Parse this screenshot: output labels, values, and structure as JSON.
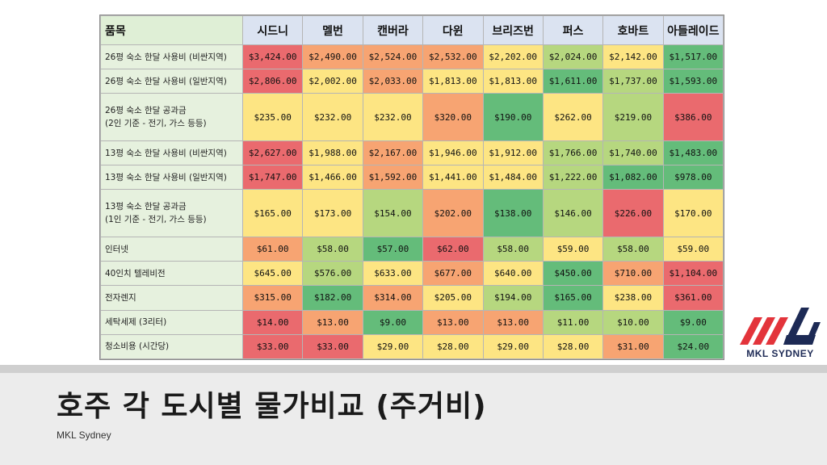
{
  "slide": {
    "title": "호주 각 도시별 물가비교 (주거비)",
    "subtitle": "MKL Sydney",
    "logo_text": "MKL SYDNEY"
  },
  "colors": {
    "red": "#ea6a6e",
    "orange": "#f7a472",
    "yellow": "#fde583",
    "lightgreen": "#b6d77f",
    "green": "#64bc7a"
  },
  "chart_data": {
    "type": "table",
    "header_item": "품목",
    "columns": [
      "시드니",
      "멜번",
      "캔버라",
      "다윈",
      "브리즈번",
      "퍼스",
      "호바트",
      "아들레이드"
    ],
    "rows": [
      {
        "label": [
          "26평 숙소 한달 사용비 (비싼지역)"
        ],
        "cells": [
          {
            "text": "$3,424.00",
            "level": "red"
          },
          {
            "text": "$2,490.00",
            "level": "orange"
          },
          {
            "text": "$2,524.00",
            "level": "orange"
          },
          {
            "text": "$2,532.00",
            "level": "orange"
          },
          {
            "text": "$2,202.00",
            "level": "yellow"
          },
          {
            "text": "$2,024.00",
            "level": "lightgreen"
          },
          {
            "text": "$2,142.00",
            "level": "yellow"
          },
          {
            "text": "$1,517.00",
            "level": "green"
          }
        ]
      },
      {
        "label": [
          "26평 숙소 한달 사용비 (일반지역)"
        ],
        "cells": [
          {
            "text": "$2,806.00",
            "level": "red"
          },
          {
            "text": "$2,002.00",
            "level": "yellow"
          },
          {
            "text": "$2,033.00",
            "level": "orange"
          },
          {
            "text": "$1,813.00",
            "level": "yellow"
          },
          {
            "text": "$1,813.00",
            "level": "yellow"
          },
          {
            "text": "$1,611.00",
            "level": "green"
          },
          {
            "text": "$1,737.00",
            "level": "lightgreen"
          },
          {
            "text": "$1,593.00",
            "level": "green"
          }
        ]
      },
      {
        "label": [
          "26평 숙소 한달 공과금",
          "(2인 기준 - 전기, 가스 등등)"
        ],
        "cells": [
          {
            "text": "$235.00",
            "level": "yellow"
          },
          {
            "text": "$232.00",
            "level": "yellow"
          },
          {
            "text": "$232.00",
            "level": "yellow"
          },
          {
            "text": "$320.00",
            "level": "orange"
          },
          {
            "text": "$190.00",
            "level": "green"
          },
          {
            "text": "$262.00",
            "level": "yellow"
          },
          {
            "text": "$219.00",
            "level": "lightgreen"
          },
          {
            "text": "$386.00",
            "level": "red"
          }
        ]
      },
      {
        "label": [
          "13평 숙소 한달 사용비 (비싼지역)"
        ],
        "cells": [
          {
            "text": "$2,627.00",
            "level": "red"
          },
          {
            "text": "$1,988.00",
            "level": "yellow"
          },
          {
            "text": "$2,167.00",
            "level": "orange"
          },
          {
            "text": "$1,946.00",
            "level": "yellow"
          },
          {
            "text": "$1,912.00",
            "level": "yellow"
          },
          {
            "text": "$1,766.00",
            "level": "lightgreen"
          },
          {
            "text": "$1,740.00",
            "level": "lightgreen"
          },
          {
            "text": "$1,483.00",
            "level": "green"
          }
        ]
      },
      {
        "label": [
          "13평 숙소 한달 사용비 (일반지역)"
        ],
        "cells": [
          {
            "text": "$1,747.00",
            "level": "red"
          },
          {
            "text": "$1,466.00",
            "level": "yellow"
          },
          {
            "text": "$1,592.00",
            "level": "orange"
          },
          {
            "text": "$1,441.00",
            "level": "yellow"
          },
          {
            "text": "$1,484.00",
            "level": "yellow"
          },
          {
            "text": "$1,222.00",
            "level": "lightgreen"
          },
          {
            "text": "$1,082.00",
            "level": "green"
          },
          {
            "text": "$978.00",
            "level": "green"
          }
        ]
      },
      {
        "label": [
          "13평 숙소 한달 공과금",
          "(1인 기준 - 전기, 가스 등등)"
        ],
        "cells": [
          {
            "text": "$165.00",
            "level": "yellow"
          },
          {
            "text": "$173.00",
            "level": "yellow"
          },
          {
            "text": "$154.00",
            "level": "lightgreen"
          },
          {
            "text": "$202.00",
            "level": "orange"
          },
          {
            "text": "$138.00",
            "level": "green"
          },
          {
            "text": "$146.00",
            "level": "lightgreen"
          },
          {
            "text": "$226.00",
            "level": "red"
          },
          {
            "text": "$170.00",
            "level": "yellow"
          }
        ]
      },
      {
        "label": [
          "인터넷"
        ],
        "cells": [
          {
            "text": "$61.00",
            "level": "orange"
          },
          {
            "text": "$58.00",
            "level": "lightgreen"
          },
          {
            "text": "$57.00",
            "level": "green"
          },
          {
            "text": "$62.00",
            "level": "red"
          },
          {
            "text": "$58.00",
            "level": "lightgreen"
          },
          {
            "text": "$59.00",
            "level": "yellow"
          },
          {
            "text": "$58.00",
            "level": "lightgreen"
          },
          {
            "text": "$59.00",
            "level": "yellow"
          }
        ]
      },
      {
        "label": [
          "40인치 텔레비전"
        ],
        "cells": [
          {
            "text": "$645.00",
            "level": "yellow"
          },
          {
            "text": "$576.00",
            "level": "lightgreen"
          },
          {
            "text": "$633.00",
            "level": "yellow"
          },
          {
            "text": "$677.00",
            "level": "orange"
          },
          {
            "text": "$640.00",
            "level": "yellow"
          },
          {
            "text": "$450.00",
            "level": "green"
          },
          {
            "text": "$710.00",
            "level": "orange"
          },
          {
            "text": "$1,104.00",
            "level": "red"
          }
        ]
      },
      {
        "label": [
          "전자렌지"
        ],
        "cells": [
          {
            "text": "$315.00",
            "level": "orange"
          },
          {
            "text": "$182.00",
            "level": "green"
          },
          {
            "text": "$314.00",
            "level": "orange"
          },
          {
            "text": "$205.00",
            "level": "yellow"
          },
          {
            "text": "$194.00",
            "level": "lightgreen"
          },
          {
            "text": "$165.00",
            "level": "green"
          },
          {
            "text": "$238.00",
            "level": "yellow"
          },
          {
            "text": "$361.00",
            "level": "red"
          }
        ]
      },
      {
        "label": [
          "세탁세제 (3리터)"
        ],
        "cells": [
          {
            "text": "$14.00",
            "level": "red"
          },
          {
            "text": "$13.00",
            "level": "orange"
          },
          {
            "text": "$9.00",
            "level": "green"
          },
          {
            "text": "$13.00",
            "level": "orange"
          },
          {
            "text": "$13.00",
            "level": "orange"
          },
          {
            "text": "$11.00",
            "level": "lightgreen"
          },
          {
            "text": "$10.00",
            "level": "lightgreen"
          },
          {
            "text": "$9.00",
            "level": "green"
          }
        ]
      },
      {
        "label": [
          "청소비용 (시간당)"
        ],
        "cells": [
          {
            "text": "$33.00",
            "level": "red"
          },
          {
            "text": "$33.00",
            "level": "red"
          },
          {
            "text": "$29.00",
            "level": "yellow"
          },
          {
            "text": "$28.00",
            "level": "yellow"
          },
          {
            "text": "$29.00",
            "level": "yellow"
          },
          {
            "text": "$28.00",
            "level": "yellow"
          },
          {
            "text": "$31.00",
            "level": "orange"
          },
          {
            "text": "$24.00",
            "level": "green"
          }
        ]
      }
    ]
  }
}
